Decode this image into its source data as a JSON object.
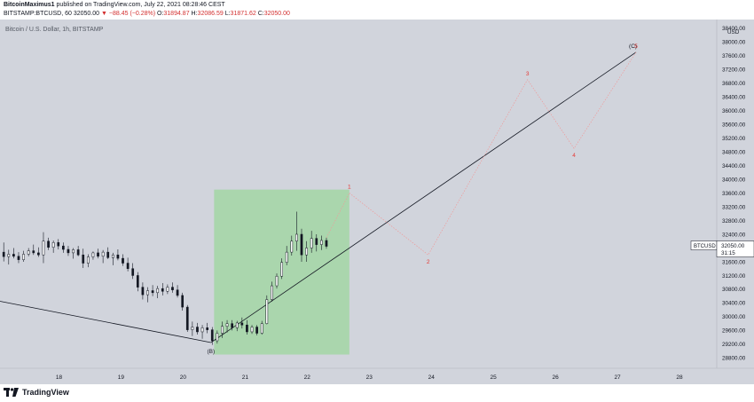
{
  "header": {
    "author": "BitcoinMaximus1",
    "published_text": "published on TradingView.com, July 22, 2021 08:28:46 CEST",
    "symbol_line": "BITSTAMP:BTCUSD, 60",
    "last": "32050.00",
    "change": "−88.45 (−0.28%)",
    "o_label": "O:",
    "o": "31894.87",
    "h_label": "H:",
    "h": "32086.59",
    "l_label": "L:",
    "l": "31871.62",
    "c_label": "C:",
    "c": "32050.00"
  },
  "chart_watermark": "Bitcoin / U.S. Dollar, 1h, BITSTAMP",
  "price_axis_currency": "USD",
  "price_tag": {
    "symbol": "BTCUSD",
    "price": "32050.00",
    "countdown": "31:15"
  },
  "footer": {
    "brand": "TradingView"
  },
  "colors": {
    "background": "#d1d4dc",
    "candle": "#131722",
    "zone": "#a5d6a7",
    "wave_label": "#e53935",
    "line": "#131722"
  },
  "chart_data": {
    "type": "candlestick",
    "title": "Bitcoin / U.S. Dollar, 1h, BITSTAMP",
    "xlabel": "",
    "ylabel": "",
    "x_ticks": [
      "18",
      "19",
      "20",
      "21",
      "22",
      "23",
      "24",
      "25",
      "26",
      "27",
      "28"
    ],
    "y_ticks": [
      28800,
      29200,
      29600,
      30000,
      30400,
      30800,
      31200,
      31600,
      32000,
      32400,
      32800,
      33200,
      33600,
      34000,
      34400,
      34800,
      35200,
      35600,
      36000,
      36400,
      36800,
      37200,
      37600,
      38000,
      38400
    ],
    "xlim": [
      17.05,
      28.6
    ],
    "ylim": [
      28500,
      38650
    ],
    "grid": false,
    "candles": [
      {
        "x": 17.11,
        "o": 31880,
        "h": 32160,
        "l": 31610,
        "c": 31750
      },
      {
        "x": 17.19,
        "o": 31750,
        "h": 31950,
        "l": 31520,
        "c": 31820
      },
      {
        "x": 17.27,
        "o": 31820,
        "h": 32000,
        "l": 31700,
        "c": 31760
      },
      {
        "x": 17.35,
        "o": 31760,
        "h": 31880,
        "l": 31560,
        "c": 31660
      },
      {
        "x": 17.43,
        "o": 31660,
        "h": 31920,
        "l": 31600,
        "c": 31820
      },
      {
        "x": 17.51,
        "o": 31820,
        "h": 32000,
        "l": 31760,
        "c": 31920
      },
      {
        "x": 17.59,
        "o": 31920,
        "h": 32100,
        "l": 31800,
        "c": 31860
      },
      {
        "x": 17.67,
        "o": 31860,
        "h": 32020,
        "l": 31740,
        "c": 31800
      },
      {
        "x": 17.75,
        "o": 31800,
        "h": 32460,
        "l": 31560,
        "c": 32200
      },
      {
        "x": 17.83,
        "o": 32200,
        "h": 32300,
        "l": 31940,
        "c": 32020
      },
      {
        "x": 17.91,
        "o": 32020,
        "h": 32220,
        "l": 31860,
        "c": 32160
      },
      {
        "x": 17.99,
        "o": 32160,
        "h": 32260,
        "l": 31960,
        "c": 32060
      },
      {
        "x": 18.07,
        "o": 32060,
        "h": 32160,
        "l": 31860,
        "c": 31960
      },
      {
        "x": 18.15,
        "o": 31960,
        "h": 32060,
        "l": 31770,
        "c": 31860
      },
      {
        "x": 18.23,
        "o": 31860,
        "h": 32000,
        "l": 31690,
        "c": 31950
      },
      {
        "x": 18.31,
        "o": 31950,
        "h": 32060,
        "l": 31760,
        "c": 31800
      },
      {
        "x": 18.39,
        "o": 31800,
        "h": 31980,
        "l": 31420,
        "c": 31560
      },
      {
        "x": 18.47,
        "o": 31560,
        "h": 31820,
        "l": 31440,
        "c": 31740
      },
      {
        "x": 18.55,
        "o": 31740,
        "h": 31900,
        "l": 31660,
        "c": 31860
      },
      {
        "x": 18.63,
        "o": 31860,
        "h": 31980,
        "l": 31700,
        "c": 31760
      },
      {
        "x": 18.71,
        "o": 31760,
        "h": 31940,
        "l": 31560,
        "c": 31880
      },
      {
        "x": 18.79,
        "o": 31880,
        "h": 32020,
        "l": 31680,
        "c": 31720
      },
      {
        "x": 18.87,
        "o": 31720,
        "h": 31860,
        "l": 31500,
        "c": 31800
      },
      {
        "x": 18.95,
        "o": 31800,
        "h": 31960,
        "l": 31640,
        "c": 31700
      },
      {
        "x": 19.03,
        "o": 31700,
        "h": 31820,
        "l": 31480,
        "c": 31560
      },
      {
        "x": 19.11,
        "o": 31560,
        "h": 31720,
        "l": 31320,
        "c": 31400
      },
      {
        "x": 19.19,
        "o": 31400,
        "h": 31560,
        "l": 31100,
        "c": 31200
      },
      {
        "x": 19.27,
        "o": 31200,
        "h": 31300,
        "l": 30740,
        "c": 30860
      },
      {
        "x": 19.35,
        "o": 30860,
        "h": 31000,
        "l": 30500,
        "c": 30640
      },
      {
        "x": 19.43,
        "o": 30640,
        "h": 30860,
        "l": 30420,
        "c": 30760
      },
      {
        "x": 19.51,
        "o": 30760,
        "h": 30920,
        "l": 30600,
        "c": 30700
      },
      {
        "x": 19.59,
        "o": 30700,
        "h": 30900,
        "l": 30540,
        "c": 30820
      },
      {
        "x": 19.67,
        "o": 30820,
        "h": 30980,
        "l": 30620,
        "c": 30740
      },
      {
        "x": 19.75,
        "o": 30740,
        "h": 30940,
        "l": 30660,
        "c": 30860
      },
      {
        "x": 19.83,
        "o": 30860,
        "h": 31000,
        "l": 30700,
        "c": 30780
      },
      {
        "x": 19.91,
        "o": 30780,
        "h": 30920,
        "l": 30560,
        "c": 30620
      },
      {
        "x": 19.99,
        "o": 30620,
        "h": 30700,
        "l": 30180,
        "c": 30280
      },
      {
        "x": 20.07,
        "o": 30280,
        "h": 30340,
        "l": 29560,
        "c": 29620
      },
      {
        "x": 20.15,
        "o": 29620,
        "h": 29860,
        "l": 29440,
        "c": 29700
      },
      {
        "x": 20.23,
        "o": 29700,
        "h": 29820,
        "l": 29480,
        "c": 29560
      },
      {
        "x": 20.31,
        "o": 29560,
        "h": 29760,
        "l": 29360,
        "c": 29680
      },
      {
        "x": 20.39,
        "o": 29680,
        "h": 29820,
        "l": 29520,
        "c": 29620
      },
      {
        "x": 20.47,
        "o": 29620,
        "h": 29700,
        "l": 29180,
        "c": 29300
      },
      {
        "x": 20.55,
        "o": 29300,
        "h": 29600,
        "l": 29220,
        "c": 29520
      },
      {
        "x": 20.63,
        "o": 29520,
        "h": 29860,
        "l": 29380,
        "c": 29720
      },
      {
        "x": 20.71,
        "o": 29720,
        "h": 29900,
        "l": 29540,
        "c": 29800
      },
      {
        "x": 20.79,
        "o": 29800,
        "h": 29900,
        "l": 29600,
        "c": 29680
      },
      {
        "x": 20.87,
        "o": 29680,
        "h": 29880,
        "l": 29580,
        "c": 29820
      },
      {
        "x": 20.95,
        "o": 29820,
        "h": 29980,
        "l": 29660,
        "c": 29760
      },
      {
        "x": 21.03,
        "o": 29760,
        "h": 29900,
        "l": 29480,
        "c": 29560
      },
      {
        "x": 21.11,
        "o": 29560,
        "h": 29760,
        "l": 29500,
        "c": 29700
      },
      {
        "x": 21.19,
        "o": 29700,
        "h": 29760,
        "l": 29460,
        "c": 29520
      },
      {
        "x": 21.27,
        "o": 29520,
        "h": 29880,
        "l": 29480,
        "c": 29800
      },
      {
        "x": 21.35,
        "o": 29800,
        "h": 30620,
        "l": 29780,
        "c": 30500
      },
      {
        "x": 21.43,
        "o": 30500,
        "h": 31020,
        "l": 30440,
        "c": 30900
      },
      {
        "x": 21.51,
        "o": 30900,
        "h": 31260,
        "l": 30820,
        "c": 31180
      },
      {
        "x": 21.59,
        "o": 31180,
        "h": 31700,
        "l": 31100,
        "c": 31580
      },
      {
        "x": 21.67,
        "o": 31580,
        "h": 32060,
        "l": 31500,
        "c": 31880
      },
      {
        "x": 21.75,
        "o": 31880,
        "h": 32360,
        "l": 31780,
        "c": 32200
      },
      {
        "x": 21.83,
        "o": 32200,
        "h": 33060,
        "l": 31920,
        "c": 32400
      },
      {
        "x": 21.91,
        "o": 32400,
        "h": 32560,
        "l": 31600,
        "c": 31800
      },
      {
        "x": 21.99,
        "o": 31800,
        "h": 32200,
        "l": 31600,
        "c": 32000
      },
      {
        "x": 22.07,
        "o": 32000,
        "h": 32500,
        "l": 31860,
        "c": 32280
      },
      {
        "x": 22.15,
        "o": 32280,
        "h": 32400,
        "l": 31900,
        "c": 32100
      },
      {
        "x": 22.23,
        "o": 32100,
        "h": 32360,
        "l": 31940,
        "c": 32220
      },
      {
        "x": 22.31,
        "o": 32220,
        "h": 32300,
        "l": 31980,
        "c": 32050
      }
    ],
    "zone": {
      "x0": 20.5,
      "x1": 22.68,
      "y0": 28900,
      "y1": 33700
    },
    "trendlines": [
      {
        "points": [
          [
            17.05,
            30450
          ],
          [
            20.45,
            29250
          ]
        ]
      },
      {
        "points": [
          [
            20.45,
            29250
          ],
          [
            27.3,
            37700
          ]
        ]
      }
    ],
    "projection": {
      "points": [
        [
          22.68,
          33600
        ],
        [
          23.95,
          31800
        ],
        [
          25.55,
          36900
        ],
        [
          26.3,
          34900
        ],
        [
          27.3,
          37700
        ]
      ]
    },
    "wave_labels": [
      {
        "label": "(B)",
        "x": 20.45,
        "y": 29250,
        "kind": "pivot"
      },
      {
        "label": "(C)",
        "x": 27.25,
        "y": 37720,
        "kind": "pivot"
      },
      {
        "label": "1",
        "x": 22.68,
        "y": 33600,
        "kind": "wave"
      },
      {
        "label": "2",
        "x": 23.95,
        "y": 31800,
        "kind": "wave"
      },
      {
        "label": "3",
        "x": 25.55,
        "y": 36900,
        "kind": "wave"
      },
      {
        "label": "4",
        "x": 26.3,
        "y": 34900,
        "kind": "wave"
      },
      {
        "label": "5",
        "x": 27.3,
        "y": 37700,
        "kind": "wave"
      }
    ]
  }
}
